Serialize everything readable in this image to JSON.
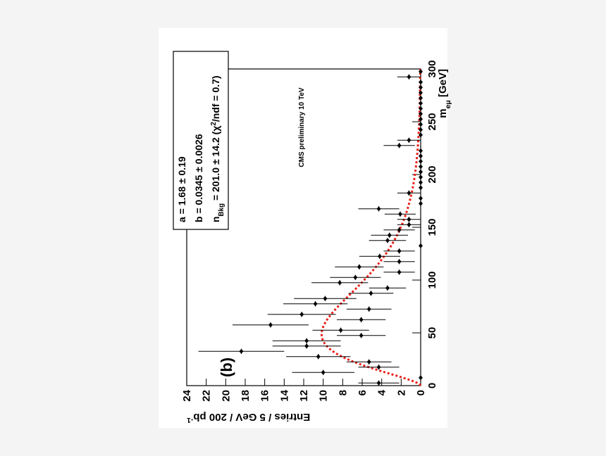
{
  "chart_data": {
    "type": "scatter",
    "x_label": [
      {
        "text": "m"
      },
      {
        "text": "eμ",
        "shift": "sub"
      },
      {
        "text": " [GeV]"
      }
    ],
    "y_label": [
      {
        "text": "Entries / 5 GeV / 200 pb"
      },
      {
        "text": "-1",
        "shift": "sup"
      }
    ],
    "annotations": [
      "(b)",
      "CMS preliminary 10 TeV"
    ],
    "stats": [
      [
        {
          "text": "a =  1.68 ± 0.19"
        }
      ],
      [
        {
          "text": "b =  0.0345 ± 0.0026"
        }
      ],
      [
        {
          "text": "n"
        },
        {
          "text": "Bkg",
          "shift": "sub"
        },
        {
          "text": " = 201.0 ± 14.2  (χ"
        },
        {
          "text": "2",
          "shift": "sup"
        },
        {
          "text": "/ndf = 0.7)"
        }
      ]
    ],
    "fit": {
      "a": 1.68,
      "b": 0.0345,
      "n": 201.0,
      "color": "#e8201c"
    },
    "x": [
      2.5,
      7.5,
      12.5,
      17.5,
      22.5,
      27.5,
      32.5,
      37.5,
      42.5,
      47.5,
      52.5,
      57.5,
      62.5,
      67.5,
      72.5,
      77.5,
      82.5,
      87.5,
      92.5,
      97.5,
      102.5,
      107.5,
      112.5,
      117.5,
      122.5,
      127.5,
      132.5,
      137.5,
      142.5,
      147.5,
      152.5,
      157.5,
      162.5,
      167.5,
      172.5,
      177.5,
      182.5,
      187.5,
      192.5,
      197.5,
      202.5,
      207.5,
      212.5,
      217.5,
      222.5,
      227.5,
      232.5,
      237.5,
      242.5,
      247.5,
      252.5,
      257.5,
      262.5,
      267.5,
      272.5,
      277.5,
      282.5,
      287.5,
      292.5,
      297.5
    ],
    "series": [
      {
        "name": "data",
        "color": "#000000",
        "values": [
          4.3,
          0,
          10.0,
          4.3,
          5.3,
          10.5,
          18.4,
          11.7,
          11.7,
          6.1,
          8.2,
          15.4,
          6.1,
          12.2,
          5.3,
          10.8,
          9.8,
          5.1,
          3.4,
          8.3,
          6.7,
          2.2,
          6.3,
          2.2,
          4.2,
          2.2,
          0,
          3.4,
          3.2,
          2.2,
          1.2,
          1.2,
          2.1,
          4.3,
          0,
          0,
          1.2,
          0,
          0,
          0,
          0,
          0,
          0,
          0,
          0,
          2.2,
          1.2,
          0,
          0,
          0,
          0,
          0,
          0,
          0,
          0,
          0,
          0,
          0,
          1.2,
          0
        ],
        "errors": [
          2.1,
          0,
          3.2,
          2.1,
          2.3,
          3.3,
          4.4,
          3.5,
          3.5,
          2.5,
          2.9,
          3.9,
          2.5,
          3.5,
          2.3,
          3.3,
          3.2,
          2.3,
          1.9,
          2.9,
          2.6,
          1.6,
          2.5,
          1.6,
          2.1,
          1.6,
          0,
          1.9,
          1.9,
          1.6,
          1.2,
          1.2,
          1.6,
          2.1,
          0,
          0,
          1.2,
          0,
          0,
          0,
          0,
          0,
          0,
          0,
          0,
          1.6,
          1.2,
          0,
          0,
          0,
          0,
          0,
          0,
          0,
          0,
          0,
          0,
          0,
          1.2,
          0
        ]
      }
    ],
    "xlim": [
      0,
      300
    ],
    "xticks": [
      0,
      50,
      100,
      150,
      200,
      250,
      300
    ],
    "ylim": [
      0,
      24
    ],
    "yticks": [
      0,
      2,
      4,
      6,
      8,
      10,
      12,
      14,
      16,
      18,
      20,
      22,
      24
    ]
  }
}
